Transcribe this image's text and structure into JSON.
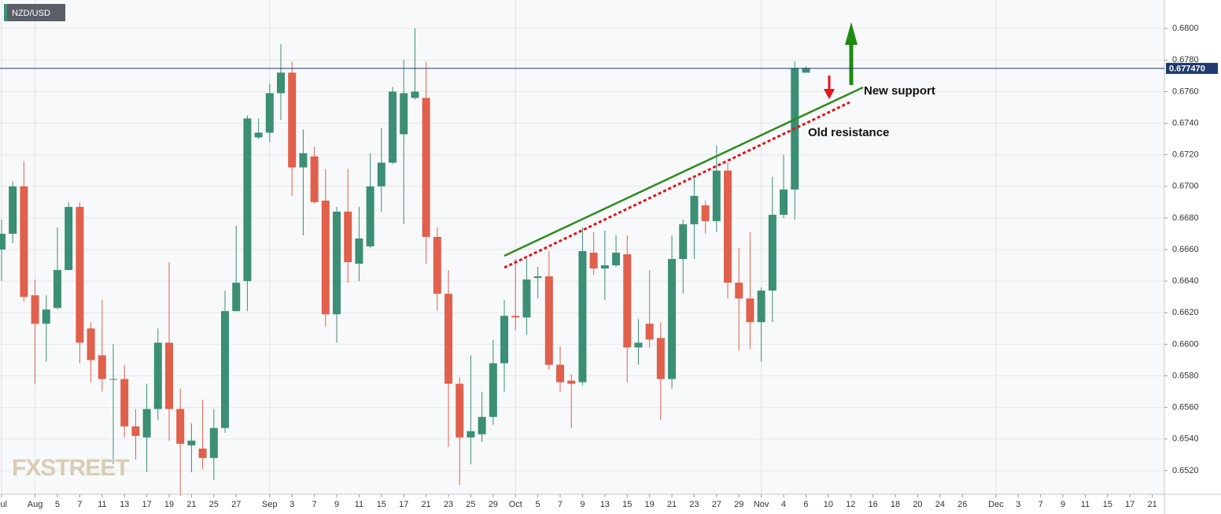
{
  "chart_data": {
    "type": "candlestick",
    "title": "NZD/USD",
    "watermark": "FXSTREET",
    "annotations": [
      "New support",
      "Old resistance"
    ],
    "up_color": "#3b8f74",
    "down_color": "#e0604c",
    "x": [
      0,
      1,
      2,
      3,
      4,
      5,
      6,
      7,
      8,
      9,
      10,
      11,
      12,
      13,
      14,
      15,
      16,
      17,
      18,
      19,
      20,
      21,
      22,
      23,
      24,
      25,
      26,
      27,
      28,
      29,
      30,
      31,
      32,
      33,
      34,
      35,
      36,
      37,
      38,
      39,
      40,
      41,
      42,
      43,
      44,
      45,
      46,
      47,
      48,
      49,
      50,
      51,
      52,
      53,
      54,
      55,
      56,
      57,
      58,
      59,
      60,
      61,
      62,
      63,
      64,
      65,
      66,
      67,
      68,
      69,
      70,
      71,
      72
    ],
    "open": [
      0.666,
      0.667,
      0.67,
      0.6631,
      0.6613,
      0.6623,
      0.6647,
      0.6687,
      0.661,
      0.6593,
      0.6578,
      0.6578,
      0.6548,
      0.6541,
      0.6559,
      0.6601,
      0.6559,
      0.6536,
      0.6534,
      0.6528,
      0.6547,
      0.6621,
      0.664,
      0.6731,
      0.6734,
      0.6759,
      0.6772,
      0.6712,
      0.6719,
      0.6691,
      0.6619,
      0.6684,
      0.6651,
      0.6662,
      0.67,
      0.6715,
      0.6733,
      0.6756,
      0.6756,
      0.6668,
      0.6632,
      0.6575,
      0.6541,
      0.6543,
      0.6554,
      0.6588,
      0.6618,
      0.6617,
      0.6642,
      0.6643,
      0.6587,
      0.6577,
      0.6576,
      0.6658,
      0.6648,
      0.665,
      0.6657,
      0.6598,
      0.6613,
      0.6604,
      0.6578,
      0.6654,
      0.6676,
      0.6688,
      0.6678,
      0.671,
      0.6639,
      0.6629,
      0.6614,
      0.6634,
      0.6682,
      0.6698,
      0.6772
    ],
    "high": [
      0.6679,
      0.6703,
      0.6716,
      0.6641,
      0.6631,
      0.6674,
      0.669,
      0.669,
      0.6614,
      0.6628,
      0.66,
      0.6587,
      0.6559,
      0.6575,
      0.661,
      0.6652,
      0.6572,
      0.655,
      0.6565,
      0.6559,
      0.6634,
      0.6675,
      0.6745,
      0.6743,
      0.6765,
      0.679,
      0.6779,
      0.6736,
      0.6725,
      0.6711,
      0.6687,
      0.6711,
      0.6687,
      0.6721,
      0.6737,
      0.6763,
      0.678,
      0.68,
      0.6779,
      0.6674,
      0.6647,
      0.6579,
      0.6593,
      0.657,
      0.6603,
      0.6628,
      0.6654,
      0.6654,
      0.6649,
      0.6659,
      0.6599,
      0.6581,
      0.6674,
      0.6671,
      0.6672,
      0.6669,
      0.6669,
      0.6616,
      0.6647,
      0.6614,
      0.6669,
      0.6679,
      0.6705,
      0.6691,
      0.6726,
      0.6715,
      0.6661,
      0.6671,
      0.6636,
      0.6706,
      0.672,
      0.6779,
      0.6776
    ],
    "low": [
      0.664,
      0.6664,
      0.6627,
      0.6575,
      0.6589,
      0.6622,
      0.6647,
      0.6588,
      0.6576,
      0.657,
      0.6524,
      0.6541,
      0.6527,
      0.6519,
      0.6552,
      0.6539,
      0.6504,
      0.6519,
      0.6521,
      0.6514,
      0.6544,
      0.6621,
      0.6621,
      0.673,
      0.6728,
      0.6742,
      0.6694,
      0.6669,
      0.6689,
      0.6611,
      0.6601,
      0.6639,
      0.664,
      0.6661,
      0.6684,
      0.6714,
      0.6676,
      0.6755,
      0.6651,
      0.6621,
      0.6535,
      0.6511,
      0.6524,
      0.6538,
      0.6549,
      0.657,
      0.6609,
      0.6606,
      0.6629,
      0.6584,
      0.657,
      0.6547,
      0.6574,
      0.6644,
      0.6628,
      0.6649,
      0.6576,
      0.6587,
      0.6598,
      0.6552,
      0.6572,
      0.6632,
      0.6654,
      0.667,
      0.6671,
      0.6629,
      0.6596,
      0.6597,
      0.6589,
      0.6614,
      0.668,
      0.6679,
      0.6772
    ],
    "close": [
      0.667,
      0.67,
      0.663,
      0.6613,
      0.6622,
      0.6647,
      0.6687,
      0.6601,
      0.659,
      0.6578,
      0.6578,
      0.6548,
      0.6542,
      0.6559,
      0.6601,
      0.6559,
      0.6537,
      0.6539,
      0.6528,
      0.6547,
      0.6621,
      0.6639,
      0.6743,
      0.6734,
      0.6759,
      0.6772,
      0.6712,
      0.6721,
      0.669,
      0.6619,
      0.6684,
      0.6652,
      0.6667,
      0.67,
      0.6715,
      0.676,
      0.6759,
      0.676,
      0.6668,
      0.6632,
      0.6575,
      0.6541,
      0.6545,
      0.6554,
      0.6588,
      0.6618,
      0.6617,
      0.6641,
      0.6643,
      0.6587,
      0.6576,
      0.6575,
      0.6659,
      0.6648,
      0.665,
      0.6658,
      0.6598,
      0.6601,
      0.6603,
      0.6578,
      0.6654,
      0.6676,
      0.6694,
      0.6678,
      0.671,
      0.6639,
      0.6629,
      0.6614,
      0.6634,
      0.6682,
      0.6698,
      0.6775,
      0.6775
    ],
    "last_price": {
      "value": 0.67747,
      "label": "0.677470"
    },
    "xlim": [
      -0.14,
      104.08
    ],
    "ylim": [
      0.6505,
      0.6818
    ],
    "xticks": [
      {
        "value": 0,
        "label": "Jul"
      },
      {
        "value": 3,
        "label": "Aug"
      },
      {
        "value": 5,
        "label": "5"
      },
      {
        "value": 7,
        "label": "7"
      },
      {
        "value": 9,
        "label": "11"
      },
      {
        "value": 11,
        "label": "13"
      },
      {
        "value": 13,
        "label": "17"
      },
      {
        "value": 15,
        "label": "19"
      },
      {
        "value": 17,
        "label": "21"
      },
      {
        "value": 19,
        "label": "25"
      },
      {
        "value": 21,
        "label": "27"
      },
      {
        "value": 24,
        "label": "Sep"
      },
      {
        "value": 26,
        "label": "3"
      },
      {
        "value": 28,
        "label": "7"
      },
      {
        "value": 30,
        "label": "9"
      },
      {
        "value": 32,
        "label": "11"
      },
      {
        "value": 34,
        "label": "15"
      },
      {
        "value": 36,
        "label": "17"
      },
      {
        "value": 38,
        "label": "21"
      },
      {
        "value": 40,
        "label": "23"
      },
      {
        "value": 42,
        "label": "25"
      },
      {
        "value": 44,
        "label": "29"
      },
      {
        "value": 46,
        "label": "Oct"
      },
      {
        "value": 48,
        "label": "5"
      },
      {
        "value": 50,
        "label": "7"
      },
      {
        "value": 52,
        "label": "9"
      },
      {
        "value": 54,
        "label": "13"
      },
      {
        "value": 56,
        "label": "15"
      },
      {
        "value": 58,
        "label": "19"
      },
      {
        "value": 60,
        "label": "21"
      },
      {
        "value": 62,
        "label": "23"
      },
      {
        "value": 64,
        "label": "27"
      },
      {
        "value": 66,
        "label": "29"
      },
      {
        "value": 68,
        "label": "Nov"
      },
      {
        "value": 70,
        "label": "4"
      },
      {
        "value": 72,
        "label": "6"
      },
      {
        "value": 74,
        "label": "10"
      },
      {
        "value": 76,
        "label": "12"
      },
      {
        "value": 78,
        "label": "16"
      },
      {
        "value": 80,
        "label": "18"
      },
      {
        "value": 82,
        "label": "20"
      },
      {
        "value": 84,
        "label": "24"
      },
      {
        "value": 86,
        "label": "26"
      },
      {
        "value": 89,
        "label": "Dec"
      },
      {
        "value": 91,
        "label": "3"
      },
      {
        "value": 93,
        "label": "7"
      },
      {
        "value": 95,
        "label": "9"
      },
      {
        "value": 97,
        "label": "11"
      },
      {
        "value": 99,
        "label": "15"
      },
      {
        "value": 101,
        "label": "17"
      },
      {
        "value": 103,
        "label": "21"
      }
    ],
    "yticks": [
      {
        "value": 0.652,
        "label": "0.6520"
      },
      {
        "value": 0.654,
        "label": "0.6540"
      },
      {
        "value": 0.656,
        "label": "0.6560"
      },
      {
        "value": 0.658,
        "label": "0.6580"
      },
      {
        "value": 0.66,
        "label": "0.6600"
      },
      {
        "value": 0.662,
        "label": "0.6620"
      },
      {
        "value": 0.664,
        "label": "0.6640"
      },
      {
        "value": 0.666,
        "label": "0.6660"
      },
      {
        "value": 0.668,
        "label": "0.6680"
      },
      {
        "value": 0.67,
        "label": "0.6700"
      },
      {
        "value": 0.672,
        "label": "0.6720"
      },
      {
        "value": 0.674,
        "label": "0.6740"
      },
      {
        "value": 0.676,
        "label": "0.6760"
      },
      {
        "value": 0.678,
        "label": "0.6780"
      },
      {
        "value": 0.68,
        "label": "0.6800"
      }
    ],
    "grid": true
  }
}
